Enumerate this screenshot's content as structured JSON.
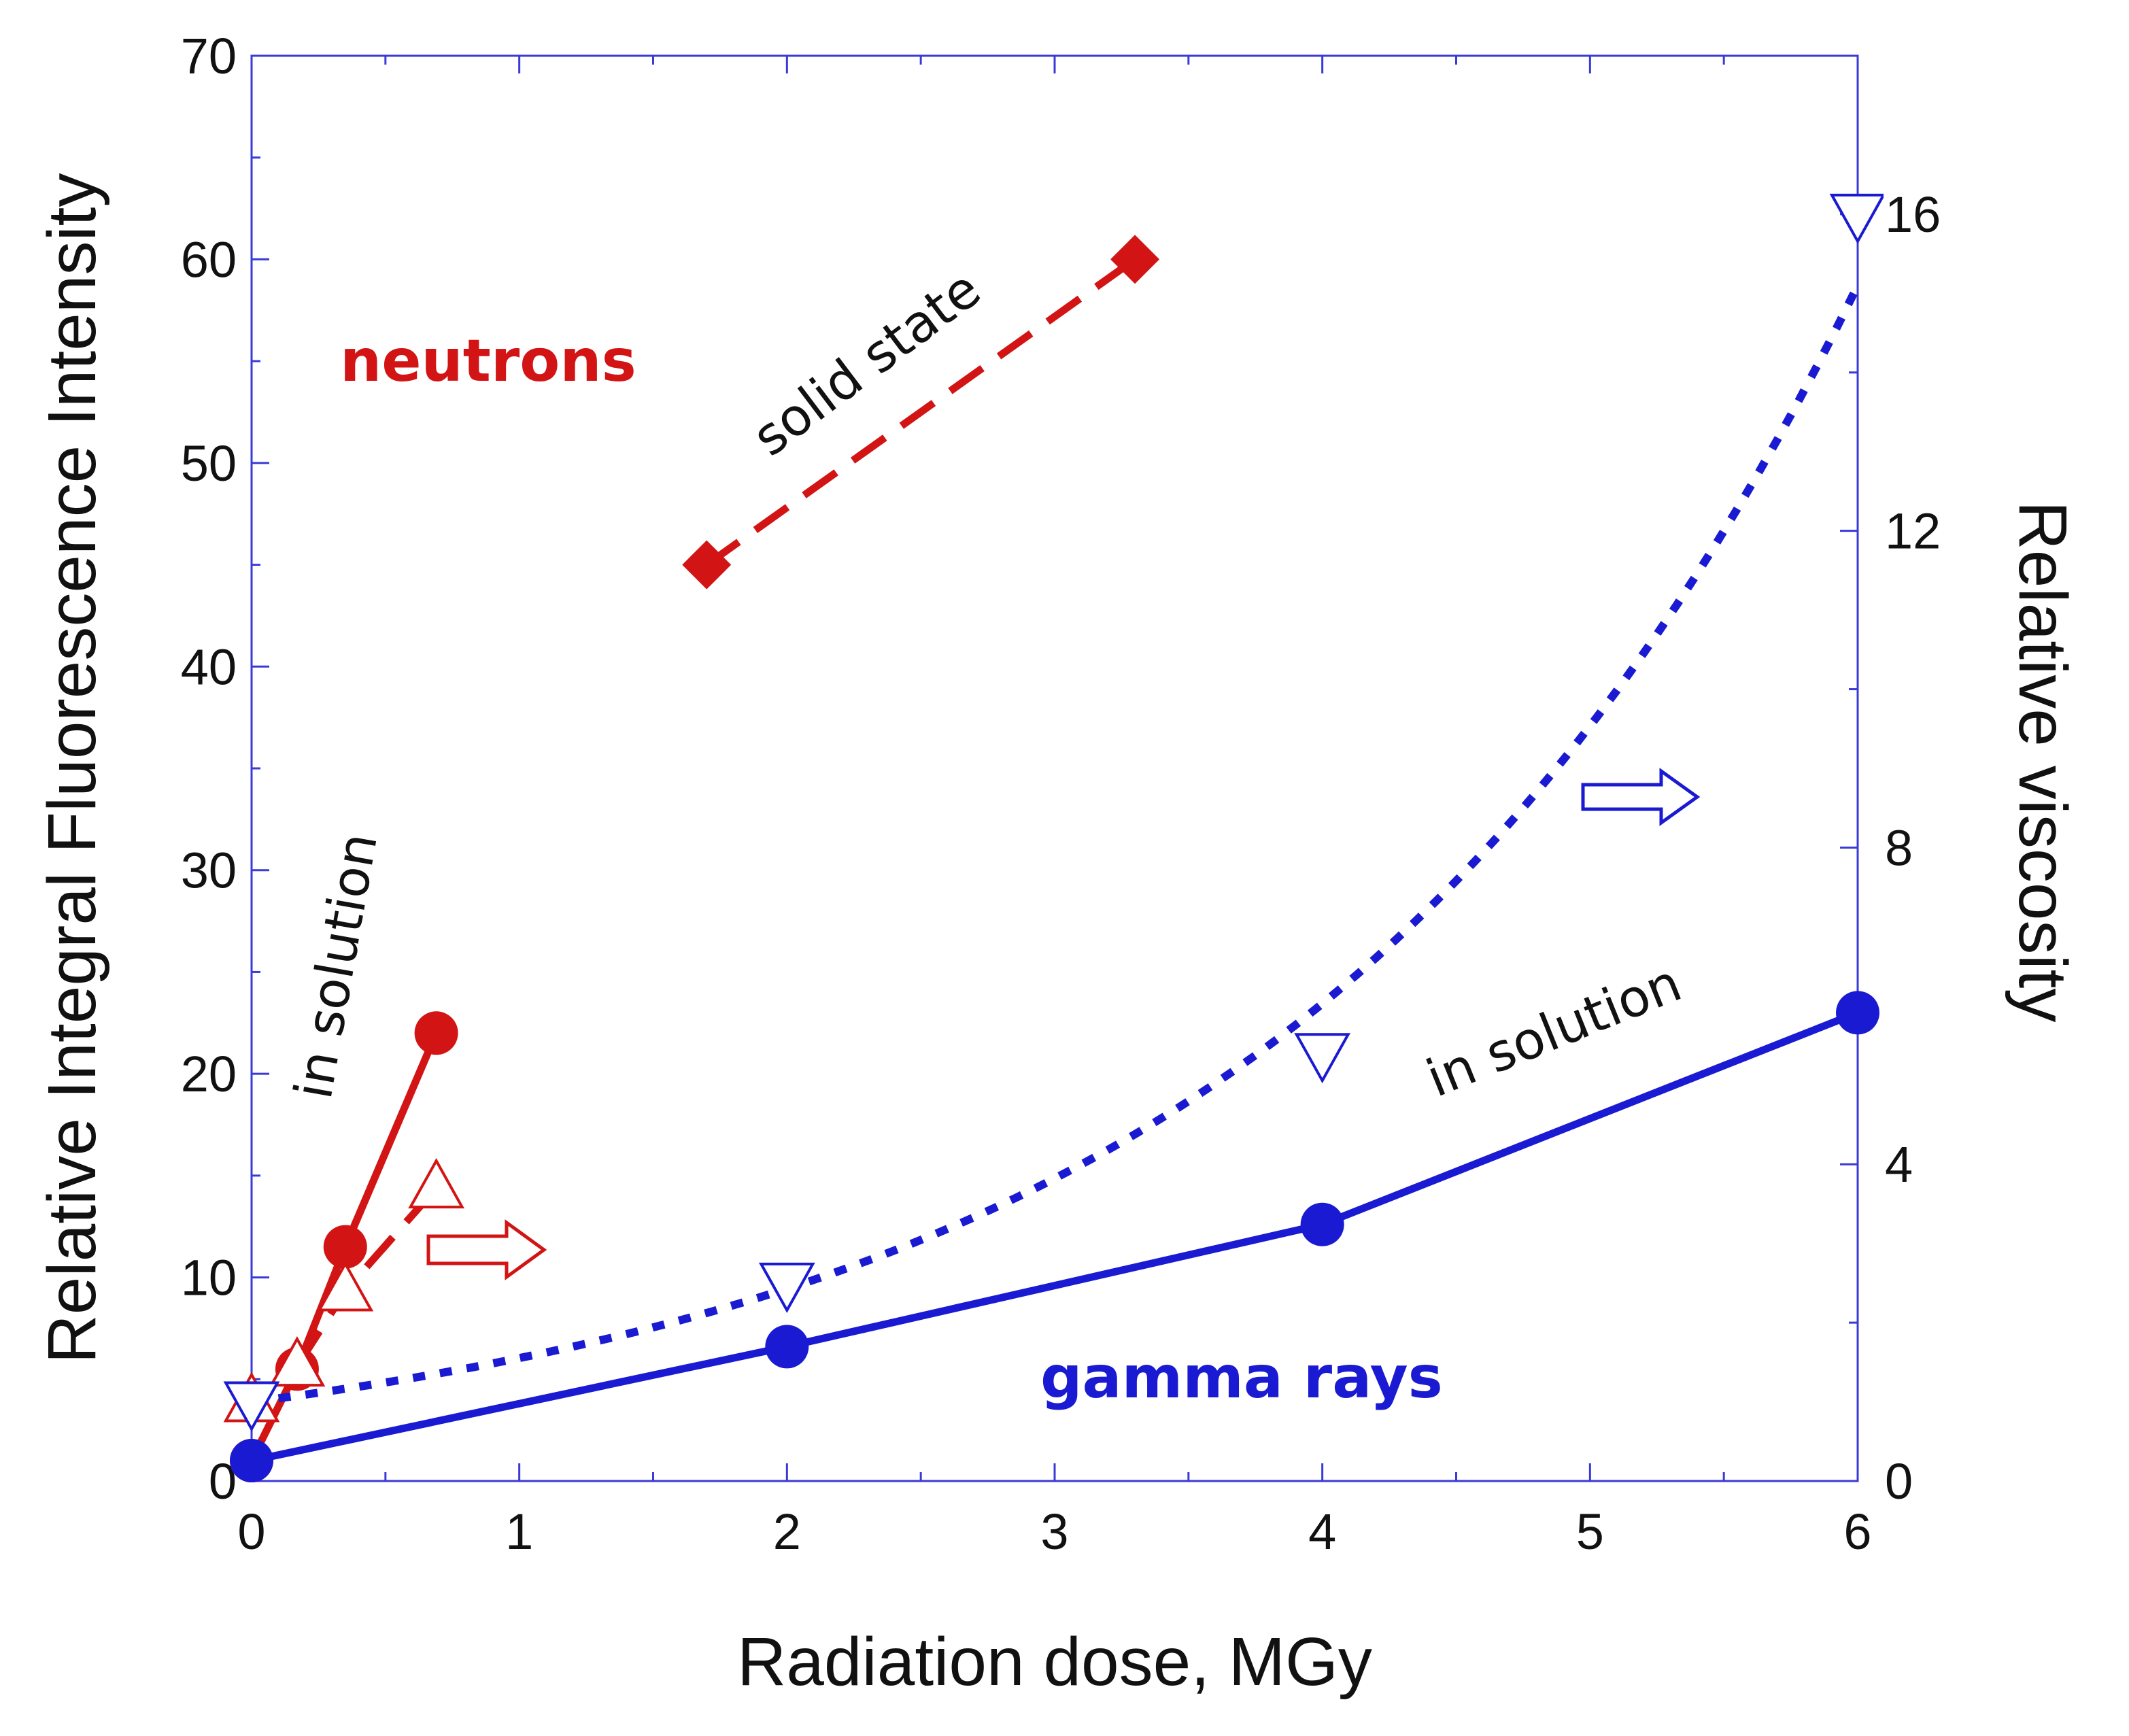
{
  "colors": {
    "red": "#d21414",
    "blue": "#1a1ad2",
    "frame": "#3a3ad8",
    "text": "#111111"
  },
  "chart_data": {
    "type": "line",
    "xlabel": "Radiation dose, MGy",
    "ylabel": "Relative Integral Fluorescence Intensity",
    "y2label": "Relative viscosity",
    "xlim": [
      0,
      6
    ],
    "ylim": [
      0,
      70
    ],
    "y2lim": [
      0,
      18
    ],
    "x_ticks": [
      "0",
      "1",
      "2",
      "3",
      "4",
      "5",
      "6"
    ],
    "y_ticks": [
      "0",
      "10",
      "20",
      "30",
      "40",
      "50",
      "60",
      "70"
    ],
    "y2_ticks": [
      "0",
      "4",
      "8",
      "12",
      "16"
    ],
    "y_tick_values": [
      0,
      10,
      20,
      30,
      40,
      50,
      60,
      70
    ],
    "y2_tick_values": [
      0,
      4,
      8,
      12,
      16
    ],
    "series": [
      {
        "name": "neutrons, in solution (fluorescence)",
        "axis": "left",
        "color": "red",
        "style": "solid",
        "marker": "circle-filled",
        "x": [
          0,
          0.17,
          0.35,
          0.69
        ],
        "y": [
          1,
          5.5,
          11.5,
          22
        ]
      },
      {
        "name": "neutrons, in solution (viscosity)",
        "axis": "right",
        "color": "red",
        "style": "dashed",
        "marker": "triangle-up-open",
        "x": [
          0,
          0.17,
          0.35,
          0.69
        ],
        "y": [
          1,
          1.45,
          2.4,
          3.7
        ]
      },
      {
        "name": "neutrons, solid state (fluorescence)",
        "axis": "left",
        "color": "red",
        "style": "dashed",
        "marker": "diamond-filled",
        "x": [
          1.7,
          3.3
        ],
        "y": [
          45,
          60
        ]
      },
      {
        "name": "gamma rays, in solution (fluorescence)",
        "axis": "left",
        "color": "blue",
        "style": "solid",
        "marker": "circle-filled",
        "x": [
          0,
          2,
          4,
          6
        ],
        "y": [
          1,
          6.6,
          12.6,
          23
        ]
      },
      {
        "name": "gamma rays, in solution (viscosity)",
        "axis": "right",
        "color": "blue",
        "style": "dotted",
        "marker": "triangle-down-open",
        "x": [
          0,
          2,
          4,
          6
        ],
        "y": [
          1,
          2.5,
          5.4,
          16
        ]
      }
    ],
    "annotations": {
      "neutrons": "neutrons",
      "gamma_rays": "gamma rays",
      "solid_state": "solid state",
      "in_solution_neutron": "in solution",
      "in_solution_gamma": "in solution"
    }
  }
}
